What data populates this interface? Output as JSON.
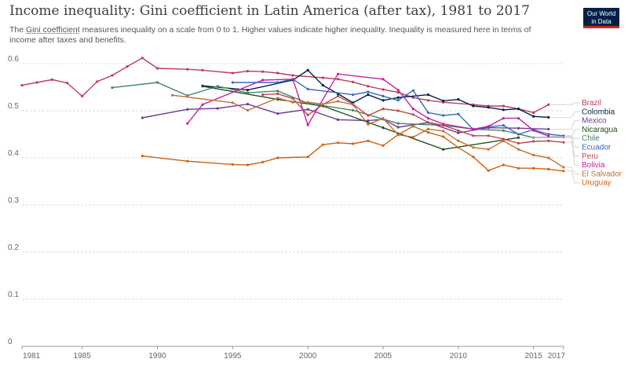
{
  "header": {
    "title": "Income inequality: Gini coefficient in Latin America (after tax), 1981 to 2017",
    "subtitle_link": "Gini coefficient",
    "subtitle_rest": " measures inequality on a scale from 0 to 1. Higher values indicate higher inequality. Inequality is measured here in terms of income after taxes and benefits.",
    "subtitle_lead": "The ",
    "logo_line1": "Our World",
    "logo_line2": "in Data"
  },
  "chart_data": {
    "type": "line",
    "title": "Income inequality: Gini coefficient in Latin America (after tax), 1981 to 2017",
    "xlabel": "",
    "ylabel": "",
    "xlim": [
      1981,
      2017
    ],
    "ylim": [
      0,
      0.6
    ],
    "x_ticks": [
      "1981",
      "1985",
      "1990",
      "1995",
      "2000",
      "2005",
      "2010",
      "2015",
      "2017"
    ],
    "y_ticks": [
      "0",
      "0.1",
      "0.2",
      "0.3",
      "0.4",
      "0.5",
      "0.6"
    ],
    "grid": true,
    "legend": "right",
    "series": [
      {
        "name": "Brazil",
        "color": "#be3a5f",
        "points": [
          [
            1981,
            0.554
          ],
          [
            1982,
            0.56
          ],
          [
            1983,
            0.566
          ],
          [
            1984,
            0.559
          ],
          [
            1985,
            0.531
          ],
          [
            1986,
            0.562
          ],
          [
            1987,
            0.575
          ],
          [
            1988,
            0.594
          ],
          [
            1989,
            0.612
          ],
          [
            1990,
            0.59
          ],
          [
            1992,
            0.588
          ],
          [
            1993,
            0.586
          ],
          [
            1995,
            0.58
          ],
          [
            1996,
            0.584
          ],
          [
            1997,
            0.583
          ],
          [
            1998,
            0.58
          ],
          [
            1999,
            0.575
          ],
          [
            2001,
            0.57
          ],
          [
            2002,
            0.567
          ],
          [
            2003,
            0.561
          ],
          [
            2004,
            0.552
          ],
          [
            2005,
            0.545
          ],
          [
            2006,
            0.539
          ],
          [
            2007,
            0.528
          ],
          [
            2008,
            0.522
          ],
          [
            2009,
            0.518
          ],
          [
            2011,
            0.513
          ],
          [
            2012,
            0.51
          ],
          [
            2013,
            0.51
          ],
          [
            2014,
            0.504
          ],
          [
            2015,
            0.496
          ],
          [
            2016,
            0.513
          ]
        ]
      },
      {
        "name": "Colombia",
        "color": "#002147",
        "points": [
          [
            1993,
            0.553
          ],
          [
            1996,
            0.544
          ],
          [
            1999,
            0.565
          ],
          [
            2000,
            0.586
          ],
          [
            2001,
            0.554
          ],
          [
            2002,
            0.536
          ],
          [
            2003,
            0.517
          ],
          [
            2004,
            0.534
          ],
          [
            2005,
            0.522
          ],
          [
            2006,
            0.528
          ],
          [
            2008,
            0.534
          ],
          [
            2009,
            0.521
          ],
          [
            2010,
            0.524
          ],
          [
            2011,
            0.51
          ],
          [
            2012,
            0.507
          ],
          [
            2013,
            0.502
          ],
          [
            2014,
            0.504
          ],
          [
            2015,
            0.488
          ],
          [
            2016,
            0.486
          ]
        ]
      },
      {
        "name": "Mexico",
        "color": "#6d3e91",
        "points": [
          [
            1989,
            0.485
          ],
          [
            1992,
            0.503
          ],
          [
            1994,
            0.505
          ],
          [
            1996,
            0.514
          ],
          [
            1998,
            0.494
          ],
          [
            2000,
            0.503
          ],
          [
            2002,
            0.481
          ],
          [
            2004,
            0.479
          ],
          [
            2005,
            0.482
          ],
          [
            2006,
            0.465
          ],
          [
            2008,
            0.475
          ],
          [
            2010,
            0.453
          ],
          [
            2012,
            0.464
          ],
          [
            2014,
            0.463
          ],
          [
            2016,
            0.461
          ]
        ]
      },
      {
        "name": "Nicaragua",
        "color": "#234e14",
        "points": [
          [
            1993,
            0.552
          ],
          [
            1998,
            0.524
          ],
          [
            2001,
            0.51
          ],
          [
            2005,
            0.464
          ],
          [
            2009,
            0.418
          ],
          [
            2014,
            0.443
          ]
        ]
      },
      {
        "name": "Chile",
        "color": "#43856b",
        "points": [
          [
            1987,
            0.549
          ],
          [
            1990,
            0.56
          ],
          [
            1992,
            0.532
          ],
          [
            1994,
            0.552
          ],
          [
            1996,
            0.538
          ],
          [
            1998,
            0.542
          ],
          [
            2000,
            0.516
          ],
          [
            2003,
            0.501
          ],
          [
            2006,
            0.473
          ],
          [
            2009,
            0.469
          ],
          [
            2011,
            0.461
          ],
          [
            2013,
            0.458
          ],
          [
            2015,
            0.443
          ],
          [
            2017,
            0.444
          ]
        ]
      },
      {
        "name": "Ecuador",
        "color": "#3568c4",
        "points": [
          [
            1995,
            0.56
          ],
          [
            1998,
            0.56
          ],
          [
            1999,
            0.567
          ],
          [
            2000,
            0.546
          ],
          [
            2003,
            0.534
          ],
          [
            2004,
            0.54
          ],
          [
            2005,
            0.531
          ],
          [
            2006,
            0.522
          ],
          [
            2007,
            0.543
          ],
          [
            2008,
            0.496
          ],
          [
            2009,
            0.49
          ],
          [
            2010,
            0.493
          ],
          [
            2011,
            0.46
          ],
          [
            2012,
            0.466
          ],
          [
            2013,
            0.469
          ],
          [
            2014,
            0.45
          ],
          [
            2015,
            0.46
          ],
          [
            2016,
            0.45
          ],
          [
            2017,
            0.447
          ]
        ]
      },
      {
        "name": "Peru",
        "color": "#b8484d",
        "points": [
          [
            1997,
            0.534
          ],
          [
            1998,
            0.536
          ],
          [
            1999,
            0.526
          ],
          [
            2000,
            0.491
          ],
          [
            2001,
            0.513
          ],
          [
            2002,
            0.531
          ],
          [
            2003,
            0.514
          ],
          [
            2004,
            0.49
          ],
          [
            2005,
            0.504
          ],
          [
            2006,
            0.5
          ],
          [
            2007,
            0.492
          ],
          [
            2008,
            0.475
          ],
          [
            2009,
            0.469
          ],
          [
            2010,
            0.458
          ],
          [
            2011,
            0.447
          ],
          [
            2012,
            0.447
          ],
          [
            2013,
            0.44
          ],
          [
            2014,
            0.431
          ],
          [
            2015,
            0.435
          ],
          [
            2016,
            0.436
          ],
          [
            2017,
            0.433
          ]
        ]
      },
      {
        "name": "Bolivia",
        "color": "#c5219e",
        "points": [
          [
            1992,
            0.473
          ],
          [
            1993,
            0.513
          ],
          [
            1997,
            0.565
          ],
          [
            1999,
            0.567
          ],
          [
            2000,
            0.47
          ],
          [
            2002,
            0.578
          ],
          [
            2005,
            0.567
          ],
          [
            2006,
            0.544
          ],
          [
            2007,
            0.504
          ],
          [
            2008,
            0.484
          ],
          [
            2009,
            0.472
          ],
          [
            2011,
            0.461
          ],
          [
            2012,
            0.467
          ],
          [
            2013,
            0.484
          ],
          [
            2014,
            0.484
          ],
          [
            2015,
            0.458
          ],
          [
            2016,
            0.446
          ]
        ]
      },
      {
        "name": "El Salvador",
        "color": "#c26f37",
        "points": [
          [
            1991,
            0.533
          ],
          [
            1995,
            0.517
          ],
          [
            1996,
            0.501
          ],
          [
            1998,
            0.527
          ],
          [
            1999,
            0.518
          ],
          [
            2000,
            0.518
          ],
          [
            2001,
            0.514
          ],
          [
            2002,
            0.52
          ],
          [
            2003,
            0.513
          ],
          [
            2004,
            0.471
          ],
          [
            2005,
            0.484
          ],
          [
            2006,
            0.449
          ],
          [
            2007,
            0.444
          ],
          [
            2008,
            0.461
          ],
          [
            2009,
            0.457
          ],
          [
            2010,
            0.436
          ],
          [
            2011,
            0.422
          ],
          [
            2012,
            0.418
          ],
          [
            2013,
            0.436
          ],
          [
            2014,
            0.418
          ],
          [
            2015,
            0.406
          ],
          [
            2016,
            0.4
          ],
          [
            2017,
            0.38
          ]
        ]
      },
      {
        "name": "Uruguay",
        "color": "#cf6111",
        "points": [
          [
            1989,
            0.404
          ],
          [
            1992,
            0.393
          ],
          [
            1995,
            0.386
          ],
          [
            1996,
            0.385
          ],
          [
            1997,
            0.391
          ],
          [
            1998,
            0.4
          ],
          [
            2000,
            0.402
          ],
          [
            2001,
            0.428
          ],
          [
            2002,
            0.432
          ],
          [
            2003,
            0.43
          ],
          [
            2004,
            0.436
          ],
          [
            2005,
            0.426
          ],
          [
            2006,
            0.449
          ],
          [
            2007,
            0.467
          ],
          [
            2008,
            0.454
          ],
          [
            2009,
            0.445
          ],
          [
            2010,
            0.422
          ],
          [
            2011,
            0.402
          ],
          [
            2012,
            0.373
          ],
          [
            2013,
            0.385
          ],
          [
            2014,
            0.378
          ],
          [
            2015,
            0.378
          ],
          [
            2016,
            0.376
          ],
          [
            2017,
            0.372
          ]
        ]
      }
    ]
  }
}
